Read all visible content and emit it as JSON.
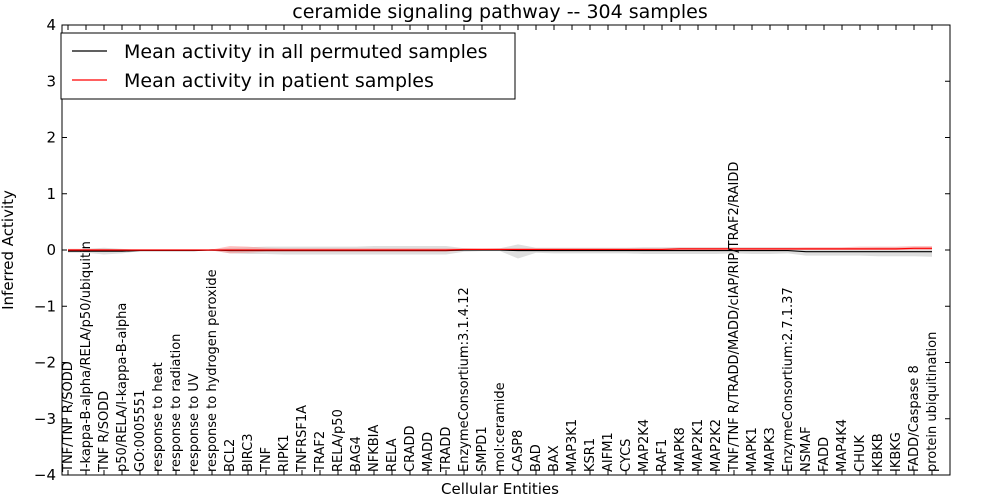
{
  "chart_data": {
    "type": "line",
    "title": "ceramide signaling pathway -- 304 samples",
    "xlabel": "Cellular Entities",
    "ylabel": "Inferred Activity",
    "ylim": [
      -4,
      4
    ],
    "yticks": [
      -4,
      -3,
      -2,
      -1,
      0,
      1,
      2,
      3,
      4
    ],
    "ytick_labels": [
      "−4",
      "−3",
      "−2",
      "−1",
      "0",
      "1",
      "2",
      "3",
      "4"
    ],
    "legend_position": "top-left",
    "grid": false,
    "colors": {
      "permuted": "#000000",
      "patient": "#ff0000",
      "permuted_band": "#bdbdbd",
      "patient_band": "#ff8080"
    },
    "categories": [
      "TNF/TNF R/SODD",
      "I-kappa-B-alpha/RELA/p50/ubiquitin",
      "TNF R/SODD",
      "p50/RELA/I-kappa-B-alpha",
      "GO:0005551",
      "response to heat",
      "response to radiation",
      "response to UV",
      "response to hydrogen peroxide",
      "BCL2",
      "BIRC3",
      "TNF",
      "RIPK1",
      "TNFRSF1A",
      "TRAF2",
      "RELA/p50",
      "BAG4",
      "NFKBIA",
      "RELA",
      "CRADD",
      "MADD",
      "TRADD",
      "EnzymeConsortium:3.1.4.12",
      "SMPD1",
      "mol:ceramide",
      "CASP8",
      "BAD",
      "BAX",
      "MAP3K1",
      "KSR1",
      "AIFM1",
      "CYCS",
      "MAP2K4",
      "RAF1",
      "MAPK8",
      "MAP2K1",
      "MAP2K2",
      "TNF/TNF R/TRADD/MADD/cIAP/RIP/TRAF2/RAIDD",
      "MAPK1",
      "MAPK3",
      "EnzymeConsortium:2.7.1.37",
      "NSMAF",
      "FADD",
      "MAP4K4",
      "CHUK",
      "IKBKB",
      "IKBKG",
      "FADD/Caspase 8",
      "protein ubiquitination"
    ],
    "series": [
      {
        "name": "Mean activity in all permuted samples",
        "values": [
          -0.02,
          -0.02,
          -0.02,
          -0.02,
          -0.01,
          -0.01,
          -0.01,
          -0.01,
          0.0,
          -0.01,
          -0.01,
          -0.01,
          -0.01,
          -0.01,
          -0.01,
          -0.01,
          -0.01,
          -0.01,
          -0.01,
          -0.01,
          -0.01,
          -0.01,
          0.0,
          0.0,
          0.0,
          -0.01,
          -0.01,
          -0.01,
          -0.01,
          -0.01,
          -0.01,
          -0.01,
          -0.01,
          -0.01,
          -0.01,
          -0.01,
          -0.01,
          -0.01,
          -0.01,
          -0.01,
          -0.01,
          -0.03,
          -0.03,
          -0.03,
          -0.03,
          -0.03,
          -0.03,
          -0.03,
          -0.03
        ],
        "band_low": [
          -0.05,
          -0.05,
          -0.08,
          -0.06,
          -0.02,
          -0.01,
          -0.01,
          -0.01,
          -0.01,
          -0.06,
          -0.07,
          -0.07,
          -0.08,
          -0.08,
          -0.08,
          -0.08,
          -0.08,
          -0.08,
          -0.08,
          -0.08,
          -0.08,
          -0.08,
          -0.03,
          -0.02,
          -0.02,
          -0.15,
          -0.05,
          -0.06,
          -0.06,
          -0.06,
          -0.06,
          -0.06,
          -0.07,
          -0.07,
          -0.07,
          -0.07,
          -0.07,
          -0.06,
          -0.07,
          -0.07,
          -0.06,
          -0.1,
          -0.1,
          -0.1,
          -0.1,
          -0.11,
          -0.11,
          -0.11,
          -0.12
        ],
        "band_high": [
          0.02,
          0.02,
          0.04,
          0.02,
          0.0,
          0.0,
          0.0,
          0.0,
          0.01,
          0.04,
          0.05,
          0.06,
          0.06,
          0.06,
          0.06,
          0.06,
          0.06,
          0.07,
          0.07,
          0.07,
          0.07,
          0.07,
          0.03,
          0.02,
          0.03,
          0.1,
          0.04,
          0.04,
          0.04,
          0.04,
          0.04,
          0.04,
          0.05,
          0.05,
          0.05,
          0.05,
          0.05,
          0.05,
          0.05,
          0.05,
          0.05,
          0.04,
          0.04,
          0.04,
          0.04,
          0.05,
          0.05,
          0.05,
          0.05
        ]
      },
      {
        "name": "Mean activity in patient samples",
        "values": [
          0.0,
          0.0,
          0.0,
          0.0,
          0.0,
          0.0,
          0.0,
          0.0,
          0.0,
          0.0,
          0.0,
          0.0,
          0.0,
          0.0,
          0.0,
          0.0,
          0.0,
          0.0,
          0.0,
          0.0,
          0.0,
          0.0,
          0.01,
          0.01,
          0.01,
          0.01,
          0.01,
          0.01,
          0.01,
          0.01,
          0.01,
          0.01,
          0.01,
          0.01,
          0.02,
          0.02,
          0.02,
          0.02,
          0.02,
          0.02,
          0.02,
          0.02,
          0.02,
          0.02,
          0.02,
          0.02,
          0.02,
          0.03,
          0.03
        ],
        "band_low": [
          -0.02,
          -0.02,
          -0.02,
          -0.01,
          -0.01,
          -0.01,
          -0.01,
          -0.01,
          -0.01,
          -0.06,
          -0.05,
          -0.03,
          -0.03,
          -0.03,
          -0.03,
          -0.03,
          -0.03,
          -0.03,
          -0.03,
          -0.03,
          -0.03,
          -0.03,
          -0.01,
          -0.01,
          -0.01,
          -0.01,
          0.0,
          0.0,
          0.0,
          0.0,
          0.0,
          0.0,
          0.0,
          0.0,
          0.0,
          0.0,
          0.0,
          0.0,
          0.0,
          0.0,
          0.0,
          0.0,
          0.0,
          0.0,
          0.0,
          0.0,
          0.0,
          0.0,
          0.0
        ],
        "band_high": [
          0.02,
          0.02,
          0.02,
          0.01,
          0.01,
          0.01,
          0.01,
          0.01,
          0.01,
          0.07,
          0.06,
          0.04,
          0.03,
          0.03,
          0.03,
          0.03,
          0.03,
          0.03,
          0.03,
          0.03,
          0.03,
          0.03,
          0.03,
          0.03,
          0.03,
          0.03,
          0.03,
          0.03,
          0.03,
          0.03,
          0.03,
          0.03,
          0.03,
          0.03,
          0.04,
          0.04,
          0.04,
          0.04,
          0.04,
          0.04,
          0.04,
          0.05,
          0.05,
          0.05,
          0.06,
          0.06,
          0.06,
          0.07,
          0.07
        ]
      }
    ]
  }
}
